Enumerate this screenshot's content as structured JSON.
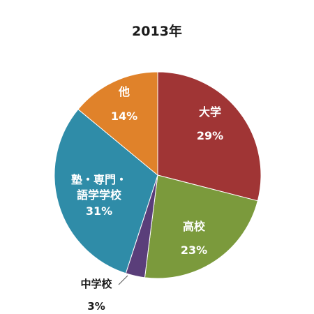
{
  "chart_data": {
    "type": "pie",
    "title": "2013年",
    "start_angle_deg": 0,
    "direction": "clockwise",
    "slices": [
      {
        "label": "大学",
        "value": 29,
        "display": "29%",
        "color": "#A03535",
        "label_lines": [
          "大学"
        ]
      },
      {
        "label": "高校",
        "value": 23,
        "display": "23%",
        "color": "#7B9A3C",
        "label_lines": [
          "高校"
        ]
      },
      {
        "label": "中学校",
        "value": 3,
        "display": "3%",
        "color": "#5A3E7A",
        "label_lines": [
          "中学校"
        ]
      },
      {
        "label": "塾・専門・語学学校",
        "value": 31,
        "display": "31%",
        "color": "#2F8CA8",
        "label_lines": [
          "塾・専門・",
          "語学学校"
        ]
      },
      {
        "label": "他",
        "value": 14,
        "display": "14%",
        "color": "#E0822A",
        "label_lines": [
          "他"
        ]
      }
    ]
  }
}
